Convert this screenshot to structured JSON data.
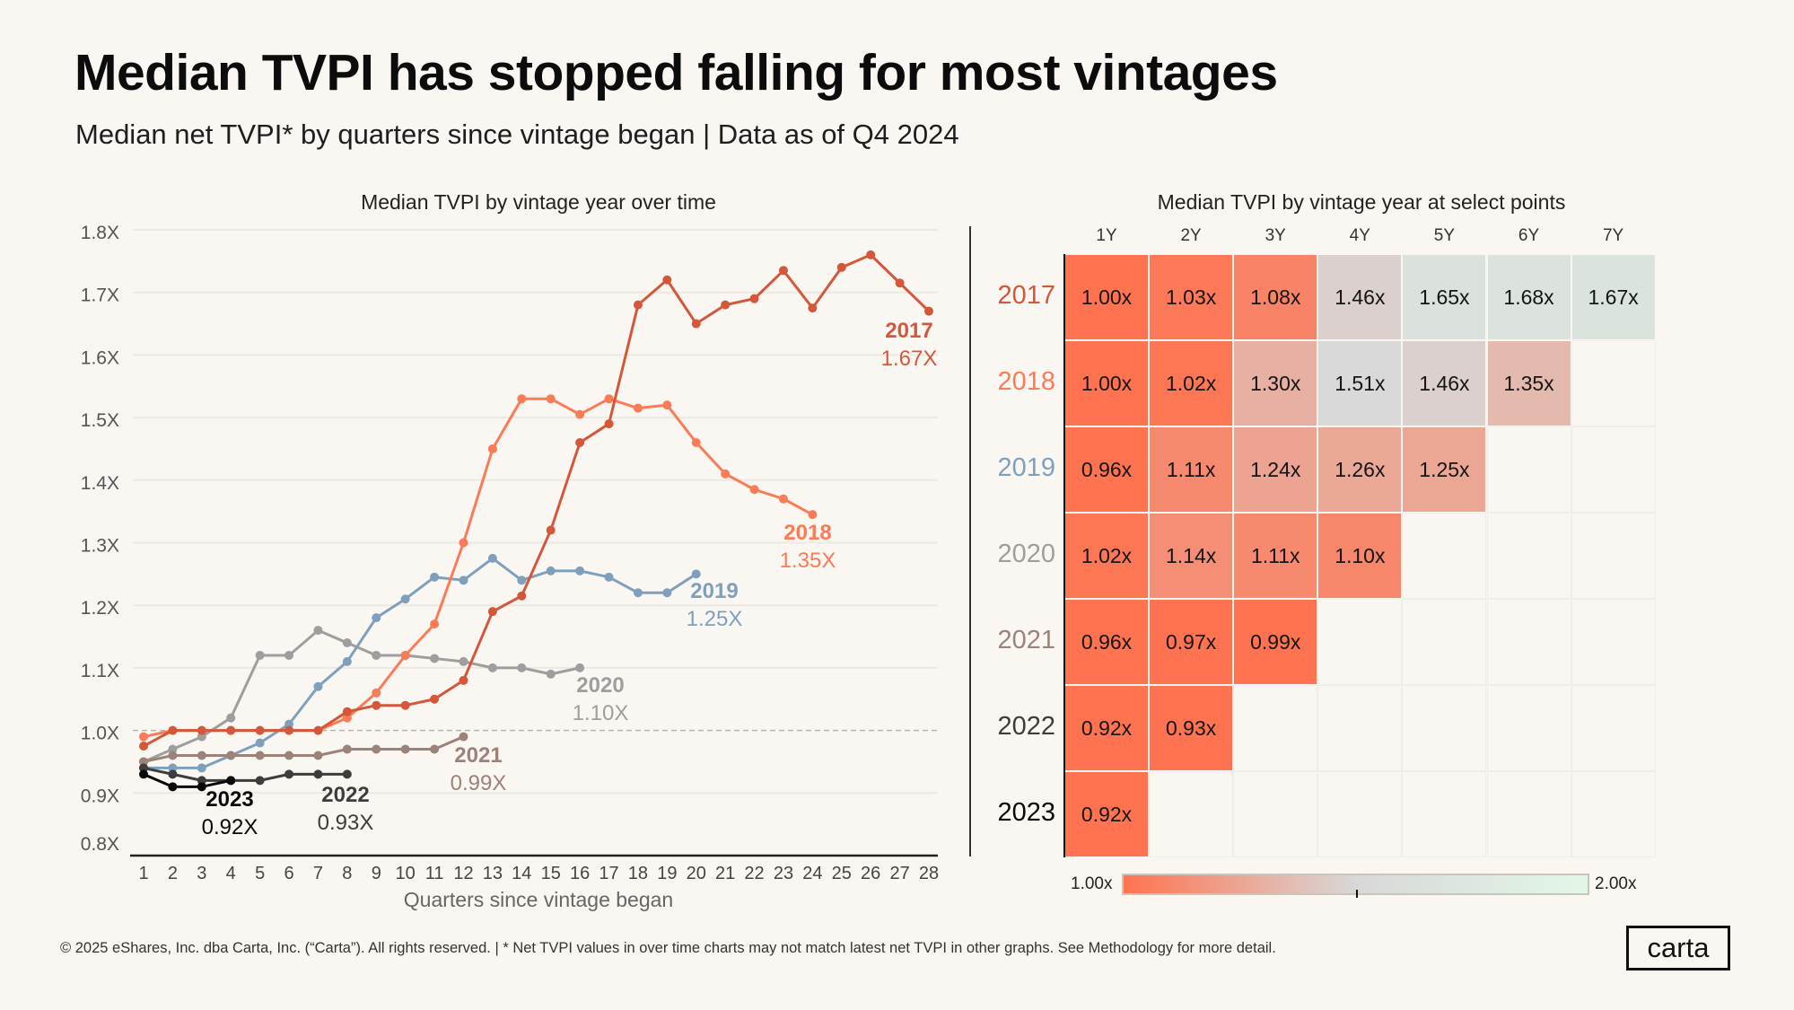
{
  "header": {
    "title": "Median TVPI has stopped falling for most vintages",
    "subtitle": "Median net TVPI* by quarters since vintage began | Data as of Q4 2024"
  },
  "footer": {
    "text": "© 2025 eShares, Inc. dba Carta, Inc. (“Carta”). All rights reserved.  |  * Net TVPI values in over time charts may not match latest net TVPI in other  graphs. See Methodology for more detail.",
    "logo": "carta"
  },
  "colors": {
    "2017": "#d4573a",
    "2018": "#fb7b56",
    "2019": "#7fa0bd",
    "2020": "#9e9e9e",
    "2021": "#9c8278",
    "2022": "#3d3d3d",
    "2023": "#0a0a0a",
    "heat_low": "#ff7350",
    "heat_mid": "#d8d8d8",
    "heat_high": "#e2f7e8"
  },
  "chart_data": [
    {
      "type": "line",
      "title": "Median TVPI by vintage year over time",
      "xlabel": "Quarters since vintage began",
      "ylabel": "",
      "x": [
        1,
        2,
        3,
        4,
        5,
        6,
        7,
        8,
        9,
        10,
        11,
        12,
        13,
        14,
        15,
        16,
        17,
        18,
        19,
        20,
        21,
        22,
        23,
        24,
        25,
        26,
        27,
        28
      ],
      "xlim": [
        1,
        28
      ],
      "ylim": [
        0.8,
        1.8
      ],
      "yticks": [
        0.8,
        0.9,
        1.0,
        1.1,
        1.2,
        1.3,
        1.4,
        1.5,
        1.6,
        1.7,
        1.8
      ],
      "ytick_labels": [
        "0.8X",
        "0.9X",
        "1.0X",
        "1.1X",
        "1.2X",
        "1.3X",
        "1.4X",
        "1.5X",
        "1.6X",
        "1.7X",
        "1.8X"
      ],
      "reference_line": 1.0,
      "grid": true,
      "series": [
        {
          "name": "2017",
          "end_label": "1.67X",
          "values": [
            0.975,
            1.0,
            1.0,
            1.0,
            1.0,
            1.0,
            1.0,
            1.03,
            1.04,
            1.04,
            1.05,
            1.08,
            1.19,
            1.215,
            1.32,
            1.46,
            1.49,
            1.68,
            1.72,
            1.65,
            1.68,
            1.69,
            1.735,
            1.675,
            1.74,
            1.76,
            1.715,
            1.67
          ]
        },
        {
          "name": "2018",
          "end_label": "1.35X",
          "values": [
            0.99,
            1.0,
            1.0,
            1.0,
            1.0,
            1.0,
            1.0,
            1.02,
            1.06,
            1.12,
            1.17,
            1.3,
            1.45,
            1.53,
            1.53,
            1.505,
            1.53,
            1.515,
            1.52,
            1.46,
            1.41,
            1.385,
            1.37,
            1.345
          ]
        },
        {
          "name": "2019",
          "end_label": "1.25X",
          "values": [
            0.94,
            0.94,
            0.94,
            0.96,
            0.98,
            1.01,
            1.07,
            1.11,
            1.18,
            1.21,
            1.245,
            1.24,
            1.275,
            1.24,
            1.255,
            1.255,
            1.245,
            1.22,
            1.22,
            1.25
          ]
        },
        {
          "name": "2020",
          "end_label": "1.10X",
          "values": [
            0.95,
            0.97,
            0.99,
            1.02,
            1.12,
            1.12,
            1.16,
            1.14,
            1.12,
            1.12,
            1.115,
            1.11,
            1.1,
            1.1,
            1.09,
            1.1
          ]
        },
        {
          "name": "2021",
          "end_label": "0.99X",
          "values": [
            0.95,
            0.96,
            0.96,
            0.96,
            0.96,
            0.96,
            0.96,
            0.97,
            0.97,
            0.97,
            0.97,
            0.99
          ]
        },
        {
          "name": "2022",
          "end_label": "0.93X",
          "values": [
            0.94,
            0.93,
            0.92,
            0.92,
            0.92,
            0.93,
            0.93,
            0.93
          ]
        },
        {
          "name": "2023",
          "end_label": "0.92X",
          "values": [
            0.93,
            0.91,
            0.91,
            0.92
          ]
        }
      ]
    },
    {
      "type": "heatmap",
      "title": "Median TVPI by vintage year at select points",
      "columns": [
        "1Y",
        "2Y",
        "3Y",
        "4Y",
        "5Y",
        "6Y",
        "7Y"
      ],
      "rows": [
        "2017",
        "2018",
        "2019",
        "2020",
        "2021",
        "2022",
        "2023"
      ],
      "values": [
        [
          1.0,
          1.03,
          1.08,
          1.46,
          1.65,
          1.68,
          1.67
        ],
        [
          1.0,
          1.02,
          1.3,
          1.51,
          1.46,
          1.35,
          null
        ],
        [
          0.96,
          1.11,
          1.24,
          1.26,
          1.25,
          null,
          null
        ],
        [
          1.02,
          1.14,
          1.11,
          1.1,
          null,
          null,
          null
        ],
        [
          0.96,
          0.97,
          0.99,
          null,
          null,
          null,
          null
        ],
        [
          0.92,
          0.93,
          null,
          null,
          null,
          null,
          null
        ],
        [
          0.92,
          null,
          null,
          null,
          null,
          null,
          null
        ]
      ],
      "labels": [
        [
          "1.00x",
          "1.03x",
          "1.08x",
          "1.46x",
          "1.65x",
          "1.68x",
          "1.67x"
        ],
        [
          "1.00x",
          "1.02x",
          "1.30x",
          "1.51x",
          "1.46x",
          "1.35x",
          ""
        ],
        [
          "0.96x",
          "1.11x",
          "1.24x",
          "1.26x",
          "1.25x",
          "",
          ""
        ],
        [
          "1.02x",
          "1.14x",
          "1.11x",
          "1.10x",
          "",
          "",
          ""
        ],
        [
          "0.96x",
          "0.97x",
          "0.99x",
          "",
          "",
          "",
          ""
        ],
        [
          "0.92x",
          "0.93x",
          "",
          "",
          "",
          "",
          ""
        ],
        [
          "0.92x",
          "",
          "",
          "",
          "",
          "",
          ""
        ]
      ],
      "colorbar": {
        "min": 1.0,
        "max": 2.0,
        "min_label": "1.00x",
        "max_label": "2.00x"
      }
    }
  ]
}
